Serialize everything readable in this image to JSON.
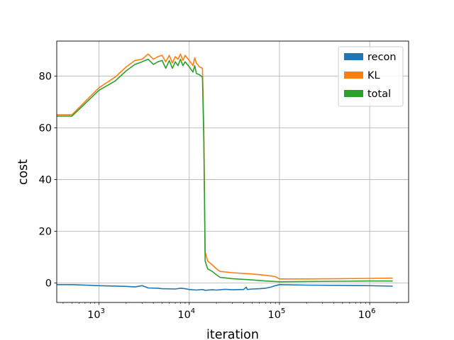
{
  "chart_data": {
    "type": "line",
    "title": "",
    "xlabel": "iteration",
    "ylabel": "cost",
    "xscale": "log",
    "xlim": [
      340,
      2700000
    ],
    "ylim": [
      -7.5,
      93.5
    ],
    "xticks": [
      {
        "value": 1000,
        "base": "10",
        "exp": "3"
      },
      {
        "value": 10000,
        "base": "10",
        "exp": "4"
      },
      {
        "value": 100000,
        "base": "10",
        "exp": "5"
      },
      {
        "value": 1000000,
        "base": "10",
        "exp": "6"
      }
    ],
    "yticks": [
      {
        "value": 0,
        "label": "0"
      },
      {
        "value": 20,
        "label": "20"
      },
      {
        "value": 40,
        "label": "40"
      },
      {
        "value": 60,
        "label": "60"
      },
      {
        "value": 80,
        "label": "80"
      }
    ],
    "grid": true,
    "legend_position": "top-right",
    "series": [
      {
        "name": "recon",
        "color": "#1f77b4",
        "points": [
          [
            340,
            -0.6
          ],
          [
            500,
            -0.6
          ],
          [
            1000,
            -1.0
          ],
          [
            2000,
            -1.3
          ],
          [
            2500,
            -1.5
          ],
          [
            3000,
            -1.0
          ],
          [
            3500,
            -1.9
          ],
          [
            4500,
            -2.0
          ],
          [
            5000,
            -2.2
          ],
          [
            7000,
            -2.3
          ],
          [
            8000,
            -2.0
          ],
          [
            9000,
            -2.2
          ],
          [
            10000,
            -2.5
          ],
          [
            12000,
            -2.7
          ],
          [
            14000,
            -2.5
          ],
          [
            15000,
            -2.8
          ],
          [
            18000,
            -2.6
          ],
          [
            20000,
            -2.7
          ],
          [
            25000,
            -2.4
          ],
          [
            30000,
            -2.6
          ],
          [
            40000,
            -2.5
          ],
          [
            43000,
            -1.6
          ],
          [
            44000,
            -2.5
          ],
          [
            50000,
            -2.3
          ],
          [
            60000,
            -2.2
          ],
          [
            70000,
            -2.0
          ],
          [
            80000,
            -1.6
          ],
          [
            90000,
            -1.0
          ],
          [
            100000,
            -0.6
          ],
          [
            200000,
            -0.8
          ],
          [
            500000,
            -0.9
          ],
          [
            1000000,
            -1.0
          ],
          [
            1800000,
            -1.2
          ]
        ]
      },
      {
        "name": "KL",
        "color": "#ff7f0e",
        "points": [
          [
            340,
            65.0
          ],
          [
            500,
            65.0
          ],
          [
            1000,
            75.5
          ],
          [
            1500,
            79.5
          ],
          [
            2000,
            83.5
          ],
          [
            2500,
            86.0
          ],
          [
            3000,
            86.5
          ],
          [
            3500,
            88.5
          ],
          [
            4000,
            86.5
          ],
          [
            4500,
            87.5
          ],
          [
            5000,
            88.0
          ],
          [
            5500,
            85.5
          ],
          [
            6000,
            88.0
          ],
          [
            6500,
            85.0
          ],
          [
            7000,
            87.5
          ],
          [
            7500,
            86.5
          ],
          [
            8000,
            88.5
          ],
          [
            8500,
            86.0
          ],
          [
            9000,
            88.0
          ],
          [
            10000,
            86.0
          ],
          [
            11000,
            84.0
          ],
          [
            11500,
            87.0
          ],
          [
            12000,
            85.0
          ],
          [
            13000,
            83.5
          ],
          [
            14000,
            83.0
          ],
          [
            14500,
            60.0
          ],
          [
            15000,
            12.0
          ],
          [
            16000,
            8.5
          ],
          [
            18000,
            7.0
          ],
          [
            20000,
            5.5
          ],
          [
            22000,
            4.5
          ],
          [
            30000,
            4.0
          ],
          [
            50000,
            3.5
          ],
          [
            70000,
            3.0
          ],
          [
            90000,
            2.5
          ],
          [
            100000,
            1.6
          ],
          [
            200000,
            1.6
          ],
          [
            500000,
            1.7
          ],
          [
            1000000,
            1.8
          ],
          [
            1800000,
            1.9
          ]
        ]
      },
      {
        "name": "total",
        "color": "#2ca02c",
        "points": [
          [
            340,
            64.5
          ],
          [
            500,
            64.5
          ],
          [
            1000,
            74.5
          ],
          [
            1500,
            78.0
          ],
          [
            2000,
            82.0
          ],
          [
            2500,
            84.5
          ],
          [
            3000,
            85.5
          ],
          [
            3500,
            86.5
          ],
          [
            4000,
            84.5
          ],
          [
            4500,
            85.5
          ],
          [
            5000,
            86.0
          ],
          [
            5500,
            83.0
          ],
          [
            6000,
            86.0
          ],
          [
            6500,
            83.0
          ],
          [
            7000,
            85.5
          ],
          [
            7500,
            84.0
          ],
          [
            8000,
            86.5
          ],
          [
            8500,
            84.0
          ],
          [
            9000,
            85.5
          ],
          [
            10000,
            83.5
          ],
          [
            11000,
            81.5
          ],
          [
            11500,
            84.0
          ],
          [
            12000,
            81.0
          ],
          [
            13000,
            80.5
          ],
          [
            14000,
            79.5
          ],
          [
            14500,
            55.0
          ],
          [
            15000,
            8.5
          ],
          [
            16000,
            5.5
          ],
          [
            18000,
            4.5
          ],
          [
            20000,
            3.2
          ],
          [
            22000,
            2.2
          ],
          [
            30000,
            1.7
          ],
          [
            50000,
            1.2
          ],
          [
            70000,
            0.8
          ],
          [
            90000,
            0.6
          ],
          [
            100000,
            0.5
          ],
          [
            200000,
            0.6
          ],
          [
            500000,
            0.7
          ],
          [
            1000000,
            0.8
          ],
          [
            1800000,
            0.8
          ]
        ]
      }
    ]
  }
}
